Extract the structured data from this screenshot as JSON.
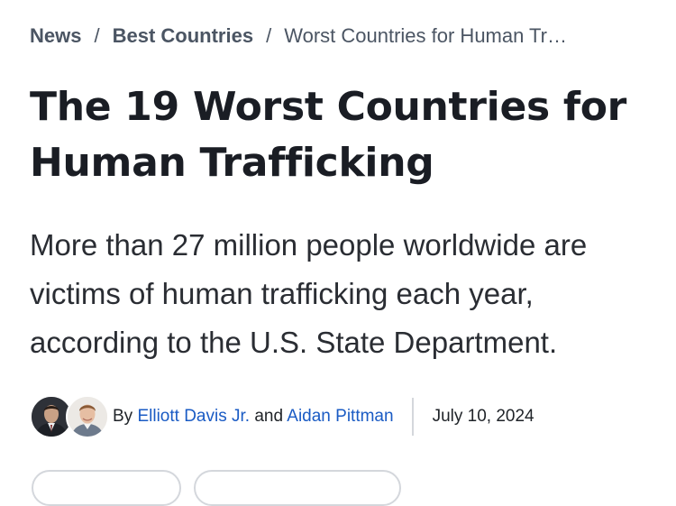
{
  "breadcrumb": {
    "items": [
      {
        "label": "News"
      },
      {
        "label": "Best Countries"
      }
    ],
    "separator": "/",
    "current": "Worst Countries for Human Tr…"
  },
  "article": {
    "title": "The 19 Worst Countries for Human Trafficking",
    "deck": "More than 27 million people worldwide are victims of human trafficking each year, according to the U.S. State Department."
  },
  "byline": {
    "prefix": "By",
    "authors": [
      "Elliott Davis Jr.",
      "Aidan Pittman"
    ],
    "conjunction": "and",
    "date": "July 10, 2024"
  },
  "colors": {
    "link": "#1a5bc4",
    "text": "#1a1d24",
    "muted": "#4b5563",
    "divider": "#d4d7dc"
  }
}
